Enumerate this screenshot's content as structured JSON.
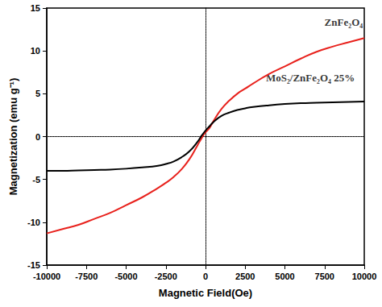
{
  "chart_data": {
    "type": "line",
    "x_label": "Magnetic Field(Oe)",
    "y_label": "Magnetization (emu g⁻¹)",
    "x": [
      -10000,
      -9000,
      -8000,
      -7000,
      -6000,
      -5000,
      -4000,
      -3000,
      -2500,
      -2000,
      -1500,
      -1000,
      -500,
      -250,
      0,
      250,
      500,
      1000,
      1500,
      2000,
      2500,
      3000,
      4000,
      5000,
      6000,
      7000,
      8000,
      9000,
      10000
    ],
    "series": [
      {
        "color": "#e8211c",
        "values": [
          -11.3,
          -10.8,
          -10.3,
          -9.6,
          -8.9,
          -8.0,
          -7.1,
          -6.0,
          -5.4,
          -4.7,
          -3.8,
          -2.6,
          -1.0,
          -0.2,
          0.5,
          1.0,
          1.8,
          3.2,
          4.2,
          5.0,
          5.6,
          6.2,
          7.3,
          8.2,
          9.1,
          9.9,
          10.5,
          11.0,
          11.5
        ]
      },
      {
        "color": "#000000",
        "values": [
          -4.0,
          -4.0,
          -3.95,
          -3.9,
          -3.85,
          -3.75,
          -3.6,
          -3.4,
          -3.2,
          -2.9,
          -2.4,
          -1.7,
          -0.6,
          0.1,
          0.7,
          1.2,
          1.7,
          2.4,
          2.8,
          3.1,
          3.3,
          3.45,
          3.65,
          3.8,
          3.9,
          3.95,
          4.0,
          4.05,
          4.1
        ]
      }
    ],
    "annotations": [
      {
        "text": "ZnFe₂O₄",
        "x": 8700,
        "y": 13.4
      },
      {
        "text": "MoS₂/ZnFe₂O₄ 25%",
        "x": 6600,
        "y": 6.9
      }
    ],
    "xlim": [
      -10000,
      10000
    ],
    "xticks": [
      -10000,
      -7500,
      -5000,
      -2500,
      0,
      2500,
      5000,
      7500,
      10000
    ],
    "ylim": [
      -15,
      15
    ],
    "yticks": [
      -15,
      -10,
      -5,
      0,
      5,
      10,
      15
    ],
    "grid": false
  }
}
